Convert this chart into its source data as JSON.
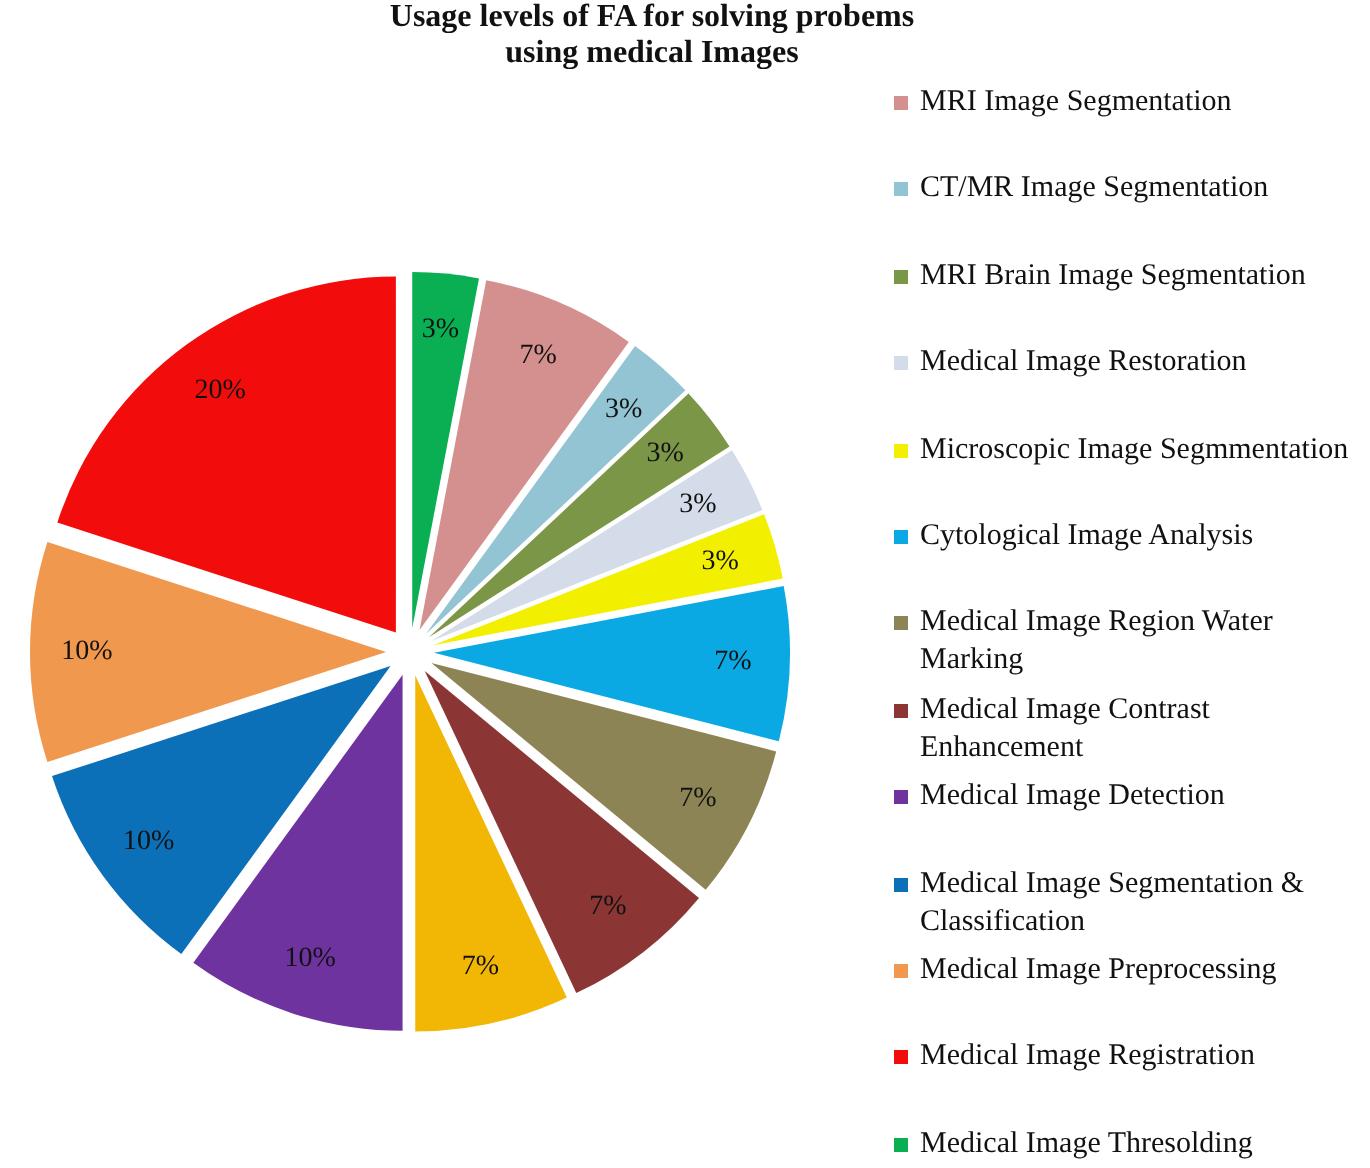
{
  "chart_data": {
    "type": "pie",
    "title": "Usage levels of FA for solving probems using medical Images",
    "categories": [
      "MRI Image Segmentation",
      "CT/MR Image Segmentation",
      "MRI Brain Image Segmentation",
      "Medical Image Restoration",
      "Microscopic Image Segmmentation",
      "Cytological Image Analysis",
      "Medical Image Region Water Marking",
      "Medical Image Contrast Enhancement",
      null,
      "Medical Image Detection",
      "Medical Image Segmentation & Classification",
      "Medical Image Preprocessing",
      "Medical Image Registration",
      "Medical Image Thresolding"
    ],
    "values": [
      7,
      3,
      3,
      3,
      3,
      7,
      7,
      7,
      7,
      10,
      10,
      10,
      20,
      3
    ],
    "colors": [
      "#d4908e",
      "#92c4d3",
      "#7b9647",
      "#d3dce8",
      "#f2f000",
      "#0aa9e3",
      "#8d8455",
      "#8b3535",
      "#f2b705",
      "#6f33a0",
      "#0c70b8",
      "#f0984e",
      "#f20c0c",
      "#0aae53"
    ],
    "value_labels": [
      "7%",
      "3%",
      "3%",
      "3%",
      "3%",
      "7%",
      "7%",
      "7%",
      "7%",
      "10%",
      "10%",
      "10%",
      "20%",
      "3%"
    ],
    "legend": "right"
  }
}
